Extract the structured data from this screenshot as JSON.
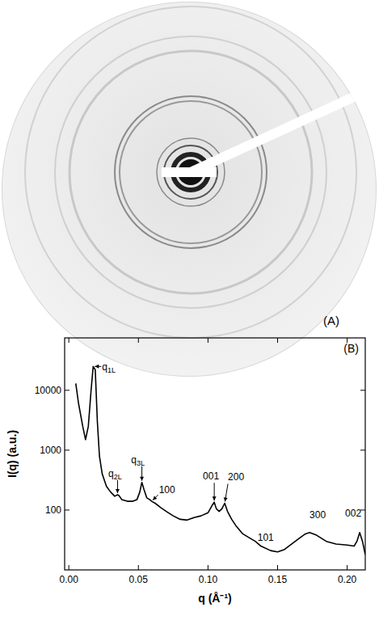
{
  "panel_a": {
    "label": "(A)"
  },
  "chart_data": {
    "type": "line",
    "title": "(B)",
    "xlabel": "q (Å⁻¹)",
    "ylabel": "I(q) (a.u.)",
    "log": "y",
    "color": "#000000",
    "xlim": [
      -0.003,
      0.213
    ],
    "xticks": [
      {
        "value": 0,
        "label": "0.00"
      },
      0.05,
      {
        "value": 0.1,
        "label": "0.10"
      },
      0.15,
      {
        "value": 0.2,
        "label": "0.20"
      }
    ],
    "ylim": [
      10,
      75000
    ],
    "yticks": [
      100,
      1000,
      10000
    ],
    "x": [
      0.005,
      0.007,
      0.01,
      0.012,
      0.014,
      0.016,
      0.0175,
      0.019,
      0.0205,
      0.022,
      0.024,
      0.027,
      0.03,
      0.033,
      0.035,
      0.036,
      0.038,
      0.042,
      0.046,
      0.049,
      0.051,
      0.0525,
      0.054,
      0.056,
      0.058,
      0.0595,
      0.062,
      0.066,
      0.07,
      0.075,
      0.08,
      0.085,
      0.09,
      0.095,
      0.1,
      0.103,
      0.1045,
      0.106,
      0.108,
      0.11,
      0.112,
      0.114,
      0.117,
      0.12,
      0.125,
      0.131,
      0.134,
      0.138,
      0.145,
      0.15,
      0.155,
      0.16,
      0.165,
      0.17,
      0.173,
      0.178,
      0.185,
      0.192,
      0.2,
      0.205,
      0.207,
      0.209,
      0.211,
      0.213
    ],
    "values": [
      13000,
      6000,
      2500,
      1500,
      2500,
      10000,
      25000,
      22000,
      3000,
      800,
      400,
      250,
      200,
      170,
      180,
      175,
      150,
      140,
      140,
      150,
      200,
      290,
      220,
      160,
      150,
      140,
      130,
      110,
      95,
      80,
      70,
      68,
      75,
      80,
      90,
      120,
      135,
      105,
      95,
      105,
      130,
      95,
      70,
      55,
      40,
      33,
      30,
      25,
      21,
      20,
      22,
      27,
      33,
      40,
      42,
      38,
      30,
      27,
      26,
      25,
      30,
      42,
      30,
      18
    ],
    "annotations": [
      {
        "text": "q",
        "subscript": "1L",
        "x": 0.0175,
        "y": 25000
      },
      {
        "text": "q",
        "subscript": "2L",
        "x": 0.035,
        "y": 180
      },
      {
        "text": "q",
        "subscript": "3L",
        "x": 0.0525,
        "y": 290
      },
      {
        "text": "100",
        "x": 0.0595,
        "y": 140
      },
      {
        "text": "001",
        "x": 0.1045,
        "y": 135
      },
      {
        "text": "200",
        "x": 0.112,
        "y": 130
      },
      {
        "text": "101",
        "x": 0.131,
        "y": 33
      },
      {
        "text": "300",
        "x": 0.173,
        "y": 42
      },
      {
        "text": "002",
        "x": 0.209,
        "y": 42
      }
    ]
  }
}
